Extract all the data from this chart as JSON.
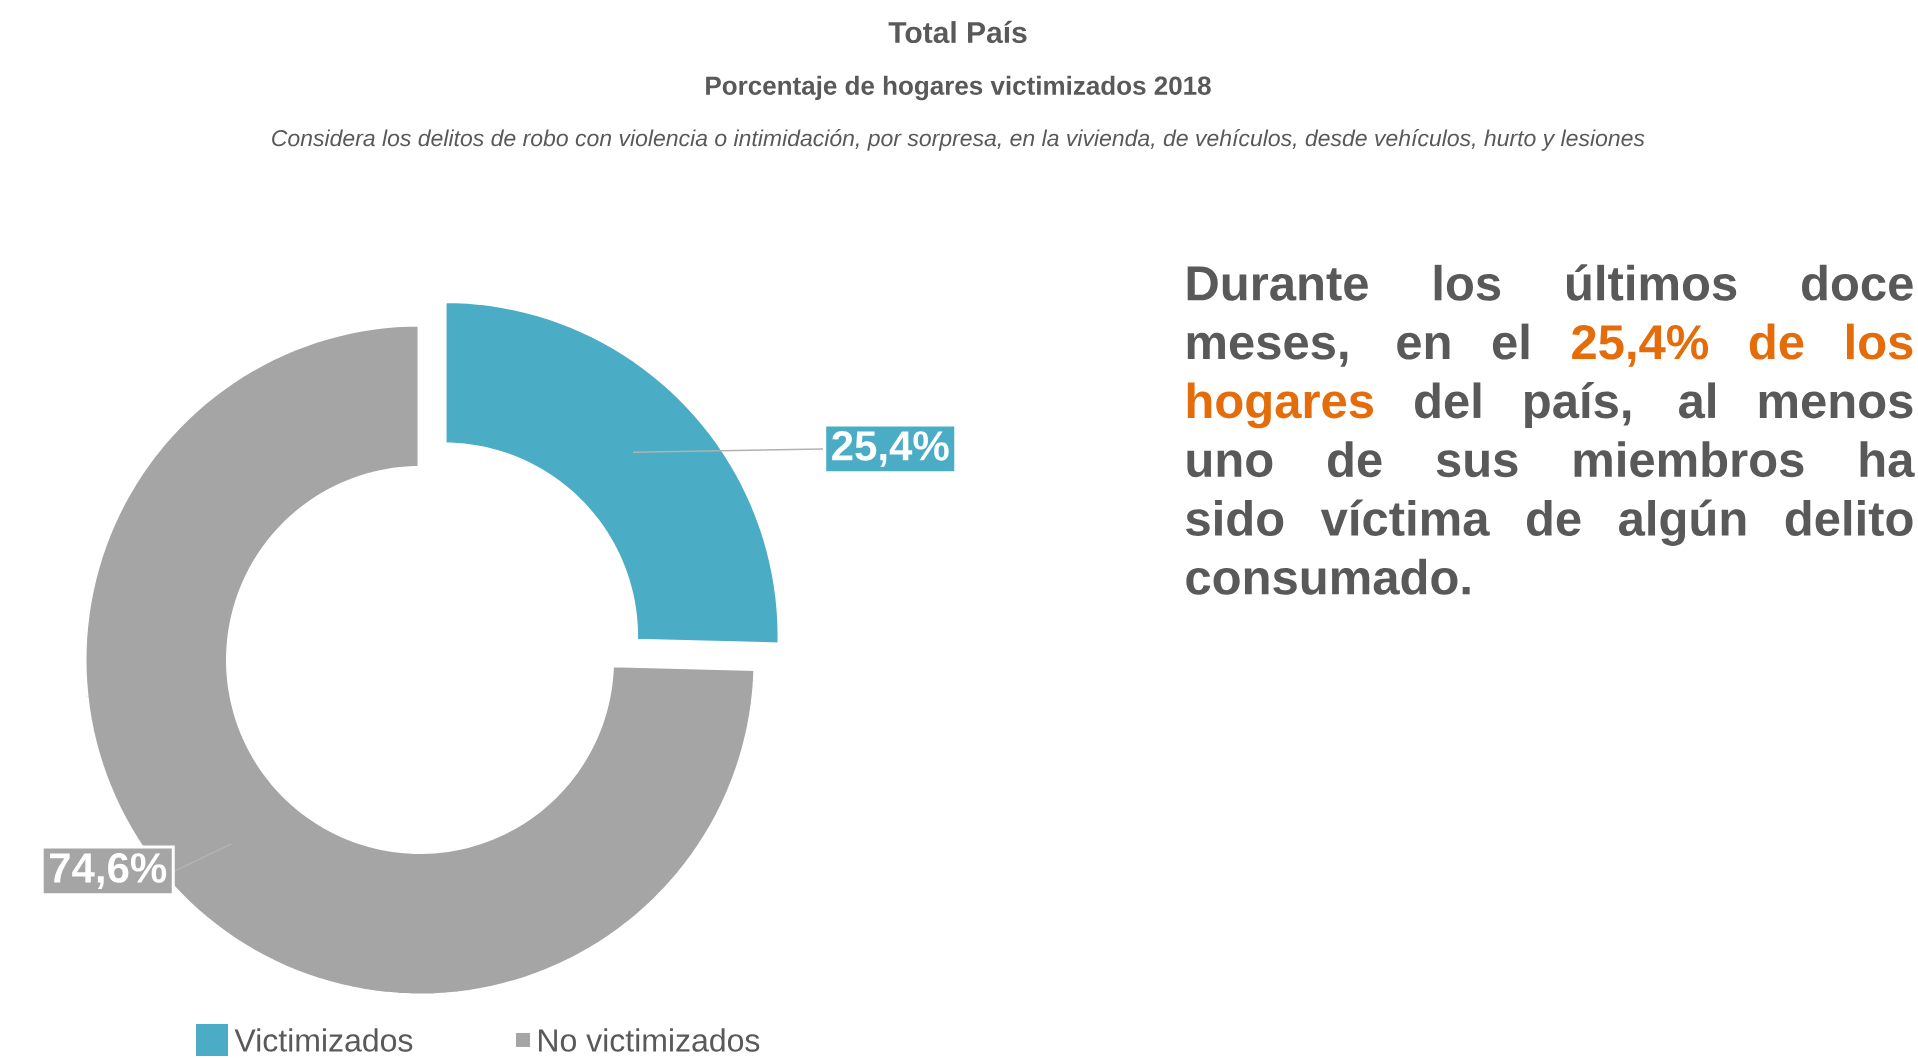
{
  "chart_data": {
    "type": "donut",
    "title": "Total País",
    "subtitle": "Porcentaje de hogares victimizados 2018",
    "annotations": [
      "Considera los delitos de robo con violencia o intimidación, por sorpresa, en la vivienda, de vehículos, desde vehículos, hurto y lesiones",
      "Durante los últimos doce meses, en el ",
      "25,4% de los hogares",
      " del país, al menos uno de sus miembros ha sido víctima de algún delito consumado."
    ],
    "categories": [
      "Victimizados",
      "No victimizados"
    ],
    "values": [
      25.4,
      74.6
    ],
    "colors": [
      "#4bacc6",
      "#a5a5a5"
    ],
    "value_labels": [
      "25,4%",
      "74,6%"
    ],
    "legend": "bottom"
  }
}
